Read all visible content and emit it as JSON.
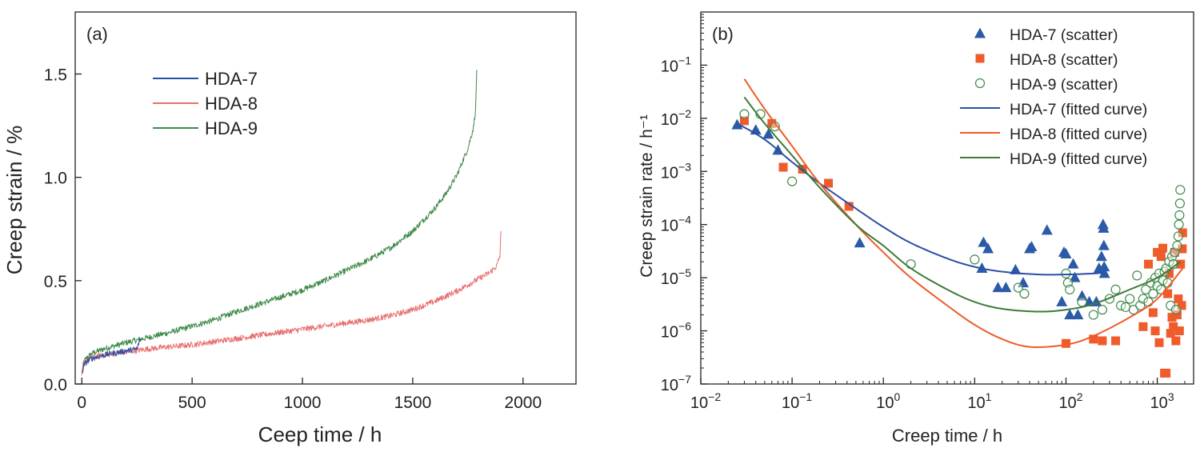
{
  "chart_data": [
    {
      "type": "line",
      "panel_label": "(a)",
      "xlabel": "Ceep time / h",
      "ylabel": "Creep strain / %",
      "xlim": [
        -30,
        2240
      ],
      "ylim": [
        0,
        1.8
      ],
      "x_ticks": [
        0,
        500,
        1000,
        1500,
        2000
      ],
      "x_tick_labels": [
        "0",
        "500",
        "1000",
        "1500",
        "2000"
      ],
      "y_ticks": [
        0.0,
        0.5,
        1.0,
        1.5
      ],
      "y_tick_labels": [
        "0.0",
        "0.5",
        "1.0",
        "1.5"
      ],
      "grid": false,
      "legend_position": "top-left",
      "series": [
        {
          "name": "HDA-7",
          "color": "#2a4fa3",
          "x": [
            0,
            10,
            25,
            50,
            100,
            150,
            200,
            250,
            262,
            265
          ],
          "y": [
            0.05,
            0.09,
            0.11,
            0.125,
            0.14,
            0.15,
            0.16,
            0.17,
            0.21,
            0.22
          ]
        },
        {
          "name": "HDA-8",
          "color": "#e86f6f",
          "x": [
            0,
            10,
            25,
            50,
            100,
            200,
            300,
            400,
            500,
            600,
            700,
            800,
            900,
            1000,
            1100,
            1200,
            1300,
            1400,
            1500,
            1600,
            1700,
            1800,
            1850,
            1880,
            1895,
            1900
          ],
          "y": [
            0.05,
            0.1,
            0.12,
            0.13,
            0.14,
            0.155,
            0.17,
            0.18,
            0.19,
            0.205,
            0.22,
            0.235,
            0.25,
            0.265,
            0.28,
            0.295,
            0.31,
            0.33,
            0.36,
            0.4,
            0.45,
            0.51,
            0.54,
            0.57,
            0.62,
            0.74
          ]
        },
        {
          "name": "HDA-9",
          "color": "#3f8a4a",
          "x": [
            0,
            10,
            25,
            50,
            100,
            200,
            300,
            400,
            500,
            600,
            700,
            800,
            900,
            1000,
            1100,
            1200,
            1300,
            1400,
            1500,
            1600,
            1650,
            1700,
            1750,
            1775,
            1785,
            1790
          ],
          "y": [
            0.06,
            0.11,
            0.13,
            0.15,
            0.17,
            0.2,
            0.225,
            0.25,
            0.28,
            0.31,
            0.35,
            0.385,
            0.42,
            0.455,
            0.5,
            0.55,
            0.6,
            0.66,
            0.74,
            0.85,
            0.92,
            1.01,
            1.14,
            1.24,
            1.33,
            1.52
          ]
        }
      ]
    },
    {
      "type": "scatter",
      "panel_label": "(b)",
      "xlabel": "Creep time / h",
      "ylabel": "Creep strain rate / h⁻¹",
      "x_scale": "log",
      "y_scale": "log",
      "xlim": [
        0.01,
        2500
      ],
      "ylim": [
        1e-07,
        1
      ],
      "x_ticks": [
        0.01,
        0.1,
        1,
        10,
        100,
        1000
      ],
      "x_tick_base": [
        "10",
        "10",
        "10",
        "10",
        "10",
        "10"
      ],
      "x_tick_exp": [
        "-2",
        "-1",
        "0",
        "1",
        "2",
        "3"
      ],
      "y_ticks": [
        1e-07,
        1e-06,
        1e-05,
        0.0001,
        0.001,
        0.01,
        0.1
      ],
      "y_tick_base": [
        "10",
        "10",
        "10",
        "10",
        "10",
        "10",
        "10"
      ],
      "y_tick_exp": [
        "-7",
        "-6",
        "-5",
        "-4",
        "-3",
        "-2",
        "-1"
      ],
      "grid": false,
      "legend_position": "top-right",
      "series": [
        {
          "name": "HDA-7 (scatter)",
          "marker": "triangle",
          "color": "#2a5aa8",
          "points": [
            [
              0.025,
              0.0075
            ],
            [
              0.04,
              0.006
            ],
            [
              0.055,
              0.005
            ],
            [
              0.07,
              0.0025
            ],
            [
              0.55,
              4.5e-05
            ],
            [
              12.5,
              4.6e-05
            ],
            [
              14,
              3.5e-05
            ],
            [
              12,
              1.5e-05
            ],
            [
              18,
              6.5e-06
            ],
            [
              22,
              6.5e-06
            ],
            [
              28,
              1.4e-05
            ],
            [
              34,
              8e-06
            ],
            [
              40,
              3.5e-05
            ],
            [
              42,
              3.8e-05
            ],
            [
              62,
              7.8e-05
            ],
            [
              95,
              3e-05
            ],
            [
              100,
              2.8e-05
            ],
            [
              90,
              3.5e-06
            ],
            [
              110,
              2e-06
            ],
            [
              120,
              1.8e-05
            ],
            [
              125,
              1e-05
            ],
            [
              135,
              2e-06
            ],
            [
              150,
              4.5e-06
            ],
            [
              180,
              3.5e-06
            ],
            [
              215,
              3.5e-06
            ],
            [
              230,
              1.5e-05
            ],
            [
              245,
              2.5e-05
            ],
            [
              255,
              0.0001
            ],
            [
              258,
              8.5e-05
            ],
            [
              260,
              4e-05
            ],
            [
              262,
              1.6e-05
            ],
            [
              264,
              1.2e-05
            ]
          ]
        },
        {
          "name": "HDA-8 (scatter)",
          "marker": "square",
          "color": "#ef5b2a",
          "points": [
            [
              0.03,
              0.009
            ],
            [
              0.06,
              0.008
            ],
            [
              0.08,
              0.0012
            ],
            [
              0.13,
              0.0011
            ],
            [
              0.25,
              0.0006
            ],
            [
              0.42,
              0.00022
            ],
            [
              100,
              5.8e-07
            ],
            [
              200,
              7e-07
            ],
            [
              250,
              6.5e-07
            ],
            [
              350,
              6.5e-07
            ],
            [
              700,
              1.2e-06
            ],
            [
              800,
              1.8e-05
            ],
            [
              900,
              2.2e-06
            ],
            [
              950,
              1e-06
            ],
            [
              1000,
              3e-05
            ],
            [
              1050,
              6e-07
            ],
            [
              1100,
              2.5e-05
            ],
            [
              1150,
              3.6e-05
            ],
            [
              1200,
              1.6e-07
            ],
            [
              1250,
              1.6e-07
            ],
            [
              1300,
              5e-06
            ],
            [
              1350,
              1.2e-05
            ],
            [
              1400,
              9e-07
            ],
            [
              1450,
              1.8e-06
            ],
            [
              1500,
              1.2e-06
            ],
            [
              1550,
              3e-05
            ],
            [
              1600,
              6.5e-07
            ],
            [
              1650,
              2e-06
            ],
            [
              1700,
              4e-06
            ],
            [
              1750,
              1e-06
            ],
            [
              1800,
              1.8e-05
            ],
            [
              1850,
              3e-06
            ],
            [
              1880,
              3.5e-05
            ],
            [
              1895,
              7e-05
            ]
          ]
        },
        {
          "name": "HDA-9 (scatter)",
          "marker": "circle",
          "color": "#3f8a4a",
          "points": [
            [
              0.03,
              0.012
            ],
            [
              0.045,
              0.012
            ],
            [
              0.065,
              0.007
            ],
            [
              0.1,
              0.00065
            ],
            [
              2,
              1.8e-05
            ],
            [
              10,
              2.2e-05
            ],
            [
              30,
              6.5e-06
            ],
            [
              35,
              5e-06
            ],
            [
              100,
              1.2e-05
            ],
            [
              105,
              8e-06
            ],
            [
              110,
              6e-06
            ],
            [
              150,
              3.5e-06
            ],
            [
              200,
              2e-06
            ],
            [
              250,
              2.5e-06
            ],
            [
              300,
              4e-06
            ],
            [
              350,
              6e-06
            ],
            [
              400,
              3e-06
            ],
            [
              450,
              2.8e-06
            ],
            [
              500,
              4e-06
            ],
            [
              550,
              2.5e-06
            ],
            [
              600,
              1.1e-05
            ],
            [
              650,
              3e-06
            ],
            [
              700,
              4e-06
            ],
            [
              750,
              6e-06
            ],
            [
              800,
              3.5e-06
            ],
            [
              850,
              8e-06
            ],
            [
              900,
              5e-06
            ],
            [
              950,
              1e-05
            ],
            [
              1000,
              7e-06
            ],
            [
              1050,
              1.2e-05
            ],
            [
              1100,
              6e-06
            ],
            [
              1150,
              9e-06
            ],
            [
              1200,
              1.3e-05
            ],
            [
              1250,
              1.5e-05
            ],
            [
              1300,
              8e-06
            ],
            [
              1350,
              2e-05
            ],
            [
              1400,
              3e-06
            ],
            [
              1450,
              2.5e-05
            ],
            [
              1500,
              1.8e-05
            ],
            [
              1550,
              3e-05
            ],
            [
              1600,
              2.5e-06
            ],
            [
              1650,
              4e-05
            ],
            [
              1700,
              6e-05
            ],
            [
              1725,
              0.0001
            ],
            [
              1750,
              0.00015
            ],
            [
              1770,
              0.00025
            ],
            [
              1785,
              0.00045
            ]
          ]
        },
        {
          "name": "HDA-7 (fitted curve)",
          "line": true,
          "color": "#2a4fa3",
          "x": [
            0.025,
            0.05,
            0.1,
            0.2,
            0.5,
            1,
            2,
            5,
            10,
            20,
            50,
            100,
            200,
            262
          ],
          "y": [
            0.008,
            0.004,
            0.0015,
            0.0006,
            0.0002,
            9e-05,
            4.5e-05,
            2.3e-05,
            1.6e-05,
            1.3e-05,
            1.15e-05,
            1.15e-05,
            1.2e-05,
            1.25e-05
          ]
        },
        {
          "name": "HDA-8 (fitted curve)",
          "line": true,
          "color": "#ef5b2a",
          "x": [
            0.03,
            0.05,
            0.1,
            0.2,
            0.5,
            1,
            2,
            5,
            10,
            20,
            40,
            100,
            200,
            500,
            1000,
            1900
          ],
          "y": [
            0.055,
            0.015,
            0.003,
            0.0006,
            0.0001,
            3e-05,
            1e-05,
            3e-06,
            1.3e-06,
            7e-07,
            5e-07,
            5.5e-07,
            8e-07,
            1.8e-06,
            4e-06,
            1.5e-05
          ]
        },
        {
          "name": "HDA-9 (fitted curve)",
          "line": true,
          "color": "#3f7a3a",
          "x": [
            0.03,
            0.05,
            0.1,
            0.2,
            0.5,
            1,
            2,
            5,
            10,
            20,
            50,
            100,
            200,
            500,
            1000,
            1790
          ],
          "y": [
            0.025,
            0.008,
            0.002,
            0.0005,
            0.0001,
            4e-05,
            1.5e-05,
            6e-06,
            3.5e-06,
            2.6e-06,
            2.3e-06,
            2.5e-06,
            3.2e-06,
            6e-06,
            1e-05,
            2e-05
          ]
        }
      ]
    }
  ]
}
